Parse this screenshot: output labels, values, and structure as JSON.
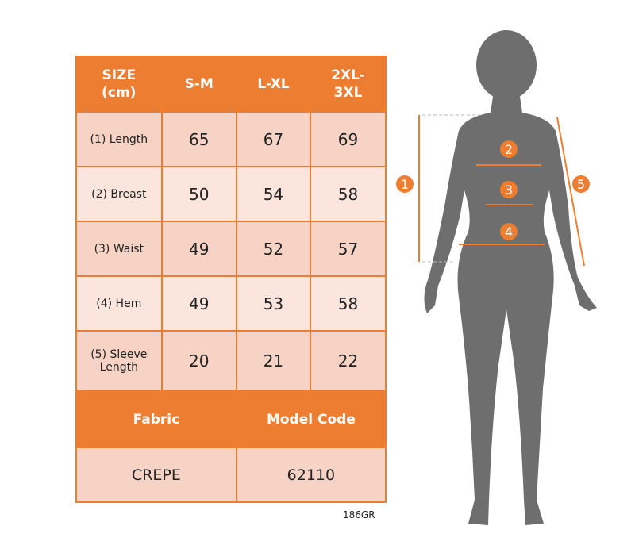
{
  "table": {
    "header": [
      "SIZE\n(cm)",
      "S-M",
      "L-XL",
      "2XL-\n3XL"
    ],
    "header_lines": [
      [
        "SIZE",
        "(cm)"
      ],
      [
        "S-M"
      ],
      [
        "L-XL"
      ],
      [
        "2XL-",
        "3XL"
      ]
    ],
    "rows": [
      {
        "label": [
          "(1) Length"
        ],
        "values": [
          "65",
          "67",
          "69"
        ]
      },
      {
        "label": [
          "(2) Breast"
        ],
        "values": [
          "50",
          "54",
          "58"
        ]
      },
      {
        "label": [
          "(3) Waist"
        ],
        "values": [
          "49",
          "52",
          "57"
        ]
      },
      {
        "label": [
          "(4) Hem"
        ],
        "values": [
          "49",
          "53",
          "58"
        ]
      },
      {
        "label": [
          "(5) Sleeve",
          "Length"
        ],
        "values": [
          "20",
          "21",
          "22"
        ]
      }
    ],
    "fabric_label": "Fabric",
    "model_code_label": "Model Code",
    "fabric_value": "CREPE",
    "model_code_value": "62110"
  },
  "product_code": "186GR",
  "figure": {
    "markers": [
      "1",
      "2",
      "3",
      "4",
      "5"
    ]
  },
  "colors": {
    "accent": "#ED7D31",
    "row_dark": "#F7D3C6",
    "row_light": "#FBE5DC",
    "silhouette": "#6E6E6E"
  }
}
